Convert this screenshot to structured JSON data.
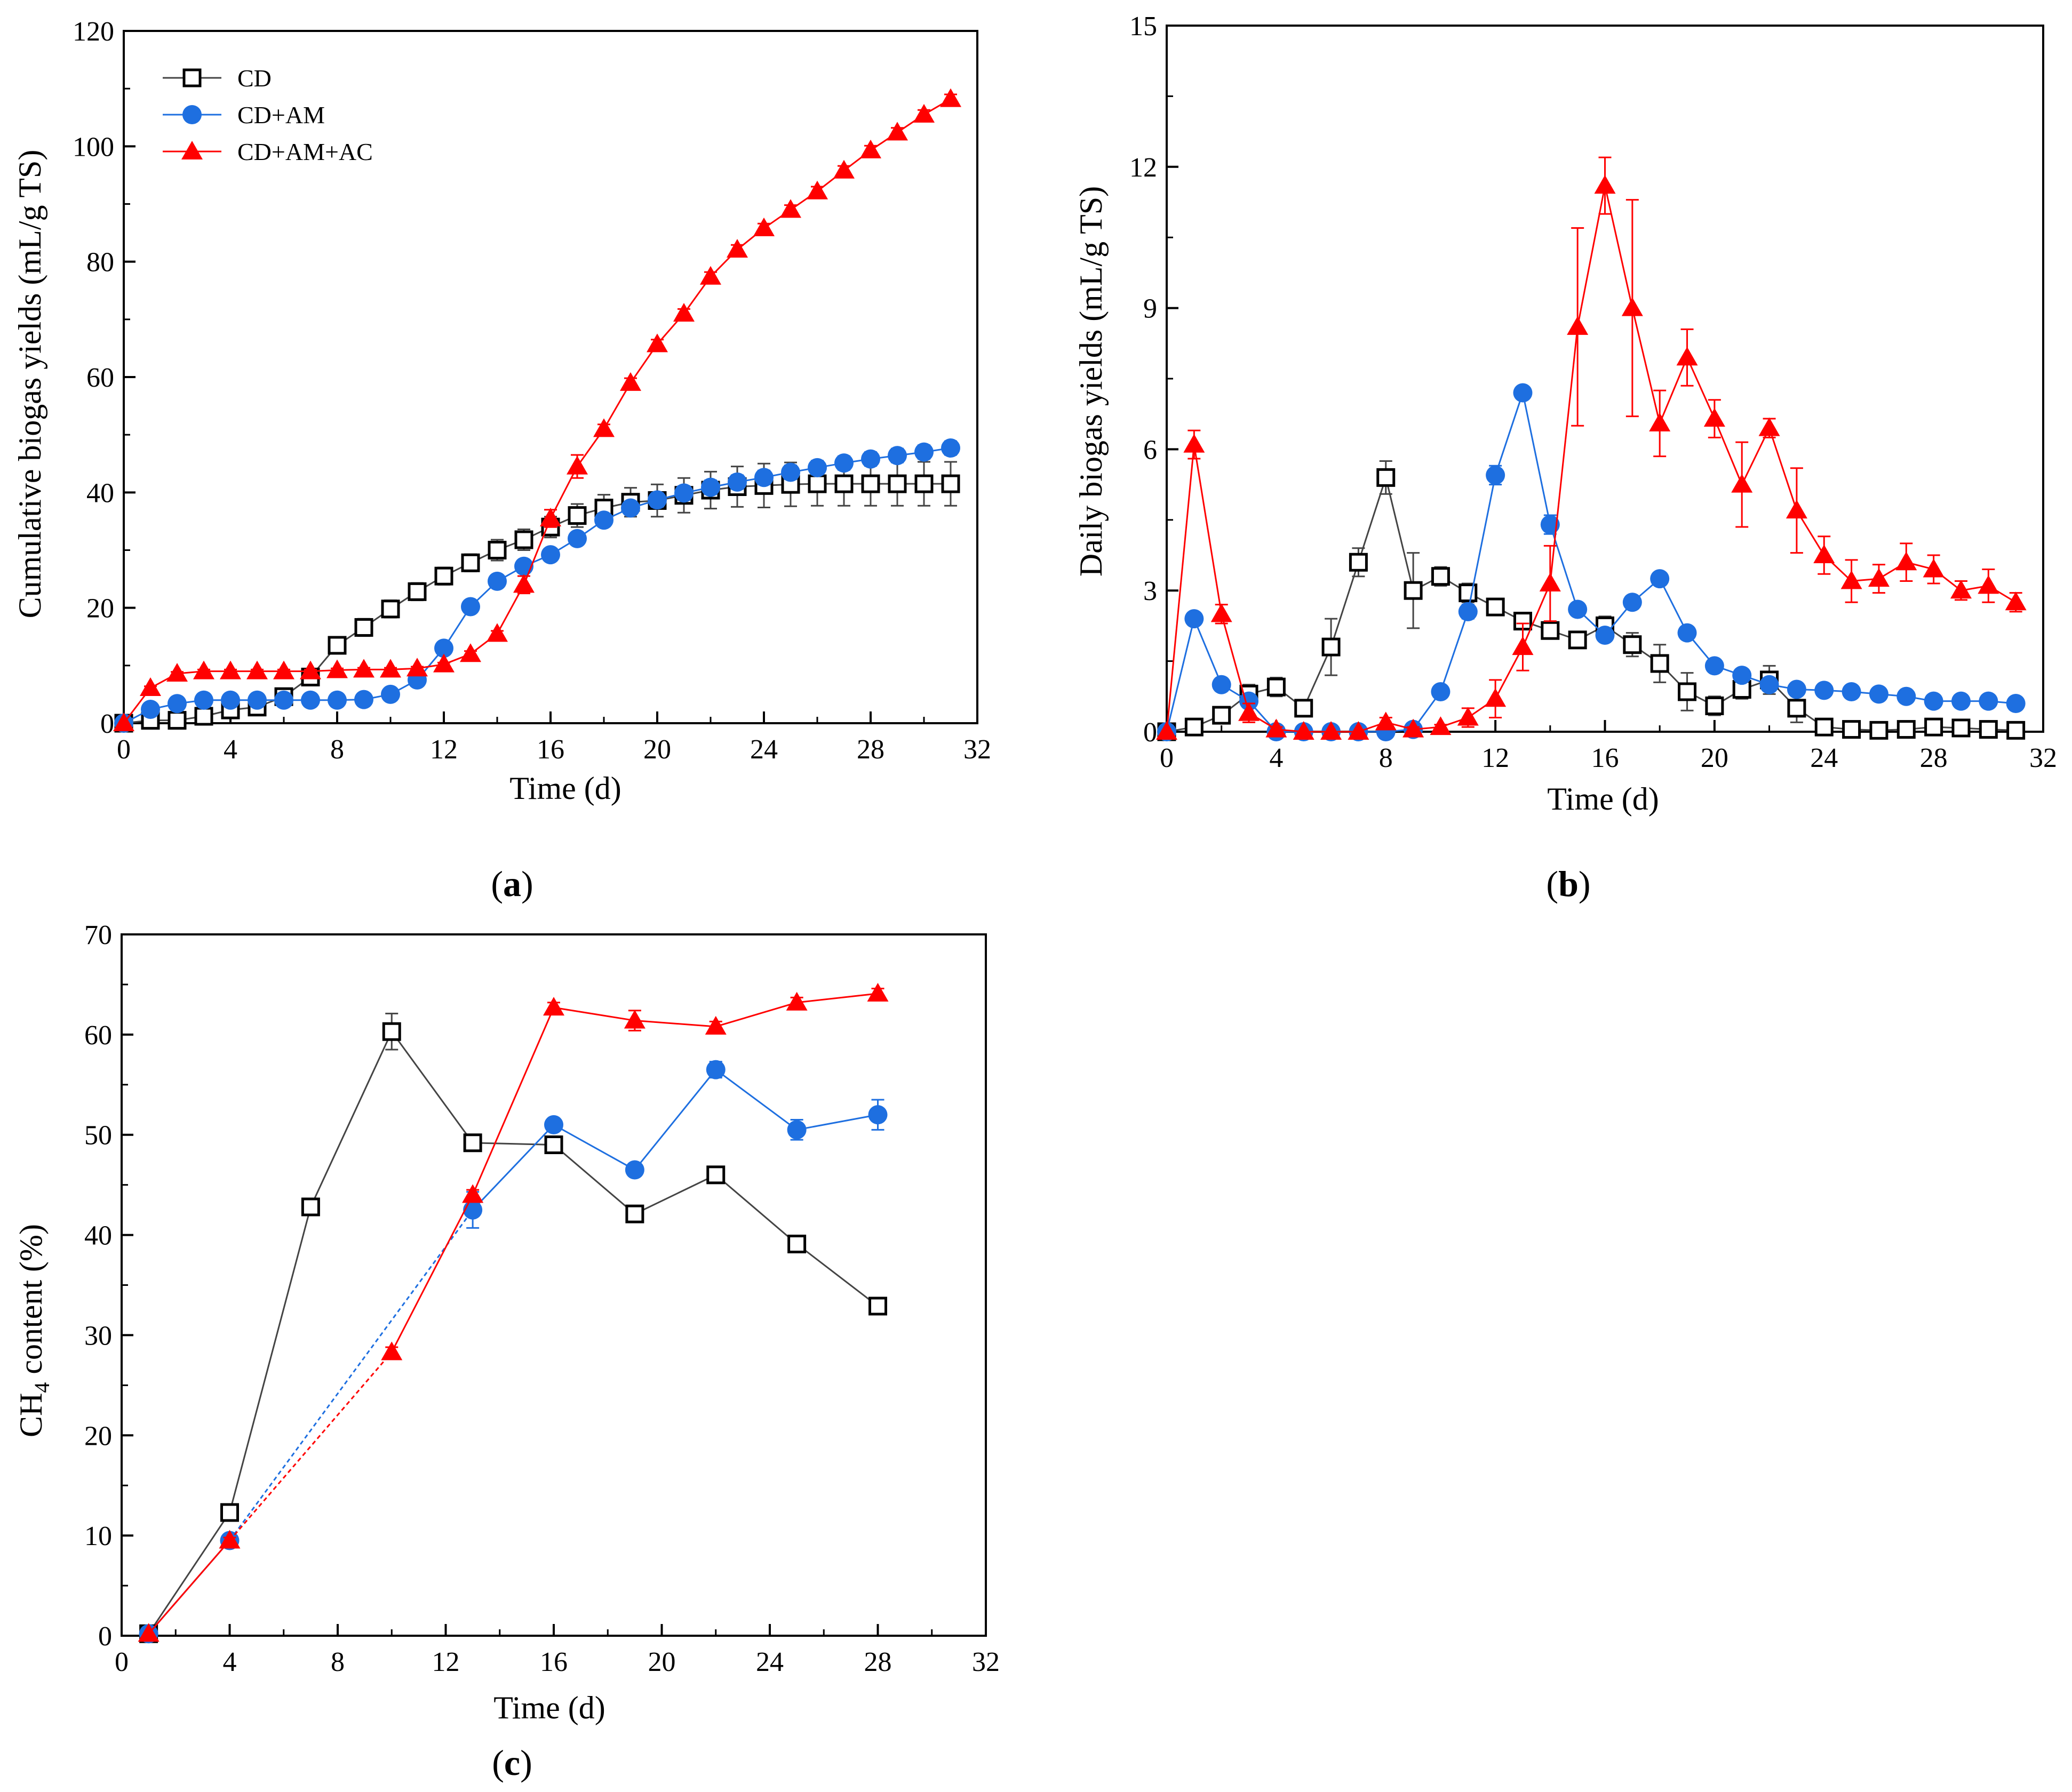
{
  "colors": {
    "CD": "#444444",
    "CD+AM": "#1e6fe0",
    "CD+AM+AC": "#ff0000"
  },
  "chart_data": [
    {
      "id": "a",
      "type": "line",
      "panel_label": {
        "open": "(",
        "letter": "a",
        "close": ")"
      },
      "xlabel": "Time (d)",
      "ylabel": "Cumulative biogas yields (mL/g TS)",
      "xlim": [
        0,
        32
      ],
      "ylim": [
        0,
        120
      ],
      "xticks": [
        0,
        4,
        8,
        12,
        16,
        20,
        24,
        28,
        32
      ],
      "yticks": [
        0,
        20,
        40,
        60,
        80,
        100,
        120
      ],
      "legend": {
        "position": "top-left",
        "entries": [
          "CD",
          "CD+AM",
          "CD+AM+AC"
        ]
      },
      "series": [
        {
          "name": "CD",
          "marker": "square-open",
          "x": [
            0,
            1,
            2,
            3,
            4,
            5,
            6,
            7,
            8,
            9,
            10,
            11,
            12,
            13,
            14,
            15,
            16,
            17,
            18,
            19,
            20,
            21,
            22,
            23,
            24,
            25,
            26,
            27,
            28,
            29,
            30,
            31
          ],
          "y": [
            0,
            0.5,
            0.5,
            1.2,
            2.3,
            2.8,
            4.6,
            8.0,
            13.5,
            16.6,
            19.8,
            22.8,
            25.5,
            27.8,
            30.0,
            31.8,
            34.0,
            36.0,
            37.3,
            38.3,
            38.6,
            39.5,
            40.4,
            41.0,
            41.2,
            41.4,
            41.5,
            41.5,
            41.5,
            41.5,
            41.5,
            41.5
          ],
          "err": [
            0,
            0.3,
            0.3,
            0.5,
            0.5,
            0.5,
            0.8,
            1.0,
            1.0,
            1.5,
            1.5,
            1.5,
            1.5,
            1.5,
            1.8,
            1.8,
            1.8,
            2.0,
            2.3,
            2.5,
            2.8,
            3.0,
            3.2,
            3.5,
            3.8,
            3.8,
            3.8,
            3.8,
            3.8,
            3.8,
            3.8,
            3.8
          ]
        },
        {
          "name": "CD+AM",
          "marker": "circle-filled",
          "x": [
            0,
            1,
            2,
            3,
            4,
            5,
            6,
            7,
            8,
            9,
            10,
            11,
            12,
            13,
            14,
            15,
            16,
            17,
            18,
            19,
            20,
            21,
            22,
            23,
            24,
            25,
            26,
            27,
            28,
            29,
            30,
            31
          ],
          "y": [
            0,
            2.4,
            3.4,
            4.0,
            4.0,
            4.0,
            4.0,
            4.0,
            4.0,
            4.1,
            5.0,
            7.5,
            13.0,
            20.2,
            24.6,
            27.2,
            29.2,
            32.0,
            35.2,
            37.3,
            38.7,
            39.9,
            40.9,
            41.8,
            42.6,
            43.5,
            44.3,
            45.1,
            45.8,
            46.4,
            47.0,
            47.7
          ],
          "err": [
            0,
            0.2,
            0.2,
            0.2,
            0.2,
            0.2,
            0.2,
            0.2,
            0.2,
            0.2,
            0.3,
            0.3,
            0.5,
            0.5,
            0.8,
            0.8,
            1.0,
            1.0,
            1.0,
            1.0,
            1.2,
            1.2,
            1.2,
            1.2,
            1.2,
            1.2,
            1.2,
            1.2,
            1.2,
            1.2,
            1.2,
            1.2
          ]
        },
        {
          "name": "CD+AM+AC",
          "marker": "triangle-filled",
          "x": [
            0,
            1,
            2,
            3,
            4,
            5,
            6,
            7,
            8,
            9,
            10,
            11,
            12,
            13,
            14,
            15,
            16,
            17,
            18,
            19,
            20,
            21,
            22,
            23,
            24,
            25,
            26,
            27,
            28,
            29,
            30,
            31
          ],
          "y": [
            0,
            6.1,
            8.6,
            9.0,
            9.0,
            9.0,
            9.0,
            9.0,
            9.2,
            9.3,
            9.3,
            9.5,
            10.2,
            12.0,
            15.5,
            24.0,
            35.5,
            44.5,
            51.0,
            59.0,
            65.7,
            71.0,
            77.4,
            82.1,
            85.8,
            89.0,
            92.2,
            95.8,
            99.3,
            102.4,
            105.5,
            108.2
          ],
          "err": [
            0,
            0.3,
            0.3,
            0.3,
            0.3,
            0.3,
            0.3,
            0.3,
            0.3,
            0.3,
            0.3,
            0.3,
            0.3,
            0.5,
            0.5,
            1.5,
            1.5,
            2.0,
            0.8,
            0.8,
            0.8,
            0.8,
            0.8,
            0.8,
            0.8,
            0.8,
            0.8,
            0.8,
            0.8,
            0.8,
            0.8,
            0.8
          ]
        }
      ]
    },
    {
      "id": "b",
      "type": "line",
      "panel_label": {
        "open": "(",
        "letter": "b",
        "close": ")"
      },
      "xlabel": "Time (d)",
      "ylabel": "Daily biogas yields (mL/g TS)",
      "xlim": [
        0,
        32
      ],
      "ylim": [
        0,
        15
      ],
      "xticks": [
        0,
        4,
        8,
        12,
        16,
        20,
        24,
        28,
        32
      ],
      "yticks": [
        0,
        3,
        6,
        9,
        12,
        15
      ],
      "series": [
        {
          "name": "CD",
          "marker": "square-open",
          "x": [
            0,
            1,
            2,
            3,
            4,
            5,
            6,
            7,
            8,
            9,
            10,
            11,
            12,
            13,
            14,
            15,
            16,
            17,
            18,
            19,
            20,
            21,
            22,
            23,
            24,
            25,
            26,
            27,
            28,
            29,
            30,
            31
          ],
          "y": [
            0,
            0.1,
            0.35,
            0.8,
            0.95,
            0.5,
            1.8,
            3.6,
            5.4,
            3.0,
            3.3,
            2.95,
            2.65,
            2.35,
            2.15,
            1.95,
            2.25,
            1.85,
            1.45,
            0.85,
            0.55,
            0.9,
            1.1,
            0.5,
            0.1,
            0.05,
            0.03,
            0.05,
            0.1,
            0.08,
            0.05,
            0.03
          ],
          "err": [
            0,
            0.05,
            0.1,
            0.2,
            0.2,
            0.15,
            0.6,
            0.3,
            0.35,
            0.8,
            0.2,
            0.2,
            0.1,
            0.1,
            0.15,
            0.15,
            0.2,
            0.25,
            0.4,
            0.4,
            0.2,
            0.2,
            0.3,
            0.3,
            0.1,
            0.05,
            0.05,
            0.05,
            0.1,
            0.05,
            0.05,
            0.05
          ]
        },
        {
          "name": "CD+AM",
          "marker": "circle-filled",
          "x": [
            0,
            1,
            2,
            3,
            4,
            5,
            6,
            7,
            8,
            9,
            10,
            11,
            12,
            13,
            14,
            15,
            16,
            17,
            18,
            19,
            20,
            21,
            22,
            23,
            24,
            25,
            26,
            27,
            28,
            29,
            30,
            31
          ],
          "y": [
            0,
            2.4,
            1.0,
            0.65,
            0.0,
            0.0,
            0.0,
            0.0,
            0.0,
            0.05,
            0.85,
            2.55,
            5.45,
            7.2,
            4.4,
            2.6,
            2.05,
            2.75,
            3.25,
            2.1,
            1.4,
            1.2,
            1.0,
            0.9,
            0.88,
            0.85,
            0.8,
            0.75,
            0.65,
            0.65,
            0.65,
            0.6
          ],
          "err": [
            0,
            0.1,
            0.1,
            0.1,
            0,
            0,
            0,
            0,
            0,
            0,
            0.1,
            0.15,
            0.2,
            0.1,
            0.2,
            0.1,
            0.1,
            0.1,
            0.1,
            0.1,
            0.1,
            0.1,
            0.1,
            0.1,
            0.05,
            0.05,
            0.05,
            0.05,
            0.05,
            0.05,
            0.05,
            0.05
          ]
        },
        {
          "name": "CD+AM+AC",
          "marker": "triangle-filled",
          "x": [
            0,
            1,
            2,
            3,
            4,
            5,
            6,
            7,
            8,
            9,
            10,
            11,
            12,
            13,
            14,
            15,
            16,
            17,
            18,
            19,
            20,
            21,
            22,
            23,
            24,
            25,
            26,
            27,
            28,
            29,
            30,
            31
          ],
          "y": [
            0,
            6.1,
            2.5,
            0.4,
            0.05,
            0.0,
            0.0,
            0.0,
            0.2,
            0.05,
            0.1,
            0.3,
            0.7,
            1.8,
            3.15,
            8.6,
            11.6,
            9.0,
            6.55,
            7.95,
            6.65,
            5.25,
            6.45,
            4.7,
            3.75,
            3.2,
            3.25,
            3.6,
            3.45,
            3.0,
            3.1,
            2.75
          ],
          "err": [
            0,
            0.3,
            0.2,
            0.2,
            0.05,
            0,
            0,
            0,
            0.1,
            0.05,
            0.05,
            0.2,
            0.4,
            0.5,
            0.8,
            2.1,
            0.6,
            2.3,
            0.7,
            0.6,
            0.4,
            0.9,
            0.2,
            0.9,
            0.4,
            0.45,
            0.3,
            0.4,
            0.3,
            0.2,
            0.35,
            0.2
          ]
        }
      ]
    },
    {
      "id": "c",
      "type": "line",
      "panel_label": {
        "open": "(",
        "letter": "c",
        "close": ")"
      },
      "xlabel": "Time (d)",
      "ylabel_main": "CH",
      "ylabel_sub": "4",
      "ylabel_rest": " content (%)",
      "xlim": [
        0,
        32
      ],
      "ylim": [
        0,
        70
      ],
      "xticks": [
        0,
        4,
        8,
        12,
        16,
        20,
        24,
        28,
        32
      ],
      "yticks": [
        0,
        10,
        20,
        30,
        40,
        50,
        60,
        70
      ],
      "series": [
        {
          "name": "CD",
          "marker": "square-open",
          "x": [
            1,
            4,
            7,
            10,
            13,
            16,
            19,
            22,
            25,
            28
          ],
          "y": [
            0.2,
            12.3,
            42.8,
            60.3,
            49.2,
            49.0,
            42.1,
            46.0,
            39.1,
            32.9
          ],
          "err": [
            0,
            0.5,
            0.5,
            1.8,
            0.5,
            0.5,
            0.5,
            0.5,
            0.5,
            0.5
          ],
          "dashed_segments": []
        },
        {
          "name": "CD+AM",
          "marker": "circle-filled",
          "x": [
            1,
            4,
            13,
            16,
            19,
            22,
            25,
            28
          ],
          "y": [
            0.2,
            9.5,
            42.5,
            51.0,
            46.5,
            56.5,
            50.5,
            52.0
          ],
          "err": [
            0,
            0.3,
            1.8,
            0.5,
            0.5,
            0.8,
            1.0,
            1.5
          ],
          "dashed_segments": [
            1
          ]
        },
        {
          "name": "CD+AM+AC",
          "marker": "triangle-filled",
          "x": [
            1,
            4,
            10,
            13,
            16,
            19,
            22,
            25,
            28
          ],
          "y": [
            0.2,
            9.5,
            28.3,
            44.0,
            62.7,
            61.4,
            60.8,
            63.2,
            64.1
          ],
          "err": [
            0,
            0.3,
            0.5,
            0.5,
            0.5,
            1.0,
            0.5,
            0.5,
            0.5
          ],
          "dashed_segments": [
            1
          ]
        }
      ]
    }
  ]
}
